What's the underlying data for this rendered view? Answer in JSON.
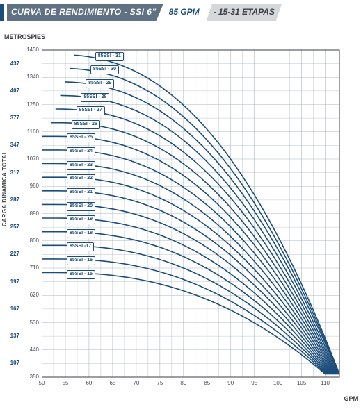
{
  "header": {
    "title": "CURVA DE RENDIMIENTO - SSI 6\"",
    "sub1": "85 GPM",
    "sub2": "- 15-31 ETAPAS"
  },
  "axes": {
    "metros_label": "METROS",
    "pies_label": "PIES",
    "y_title_vertical": "CARGA DINÁMICA TOTAL",
    "x_unit": "GPM",
    "xlim": [
      50,
      113
    ],
    "ylim_pies": [
      350,
      1430
    ],
    "x_ticks": [
      50,
      55,
      60,
      65,
      70,
      75,
      80,
      85,
      90,
      95,
      100,
      105,
      110
    ],
    "y_ticks_pies": [
      350,
      440,
      530,
      620,
      710,
      800,
      890,
      980,
      1070,
      1160,
      1250,
      1340,
      1430
    ],
    "y_ticks_metros": [
      107,
      137,
      167,
      197,
      227,
      257,
      287,
      317,
      347,
      377,
      407,
      437
    ],
    "grid_color": "#a9b8c6",
    "plot_bg": "#ffffff",
    "axis_color": "#3a3f46",
    "tick_fontsize": 8
  },
  "style": {
    "curve_color": "#1c4d7a",
    "curve_width": 1.6,
    "pill_border": "#1c4d7a",
    "pill_text": "#1c4d7a",
    "pill_bg": "#ffffff",
    "pill_fontsize": 7
  },
  "curves": [
    {
      "name": "85SSI - 15",
      "label": "85SSI - 15",
      "start_pies": 695,
      "label_x": 55,
      "end_x": 110.0
    },
    {
      "name": "85SSI - 16",
      "label": "85SSI - 16",
      "start_pies": 740,
      "label_x": 55,
      "end_x": 110.2
    },
    {
      "name": "85SSI - 17",
      "label": "85SSI -17",
      "start_pies": 785,
      "label_x": 55,
      "end_x": 110.4
    },
    {
      "name": "85SSI - 18",
      "label": "85SSI - 18",
      "start_pies": 830,
      "label_x": 55,
      "end_x": 110.6
    },
    {
      "name": "85SSI - 19",
      "label": "85SSI - 19",
      "start_pies": 875,
      "label_x": 55,
      "end_x": 110.8
    },
    {
      "name": "85SSI - 20",
      "label": "85SSI - 20",
      "start_pies": 920,
      "label_x": 55,
      "end_x": 111.0
    },
    {
      "name": "85SSI - 21",
      "label": "85SSI - 21",
      "start_pies": 965,
      "label_x": 55,
      "end_x": 111.2
    },
    {
      "name": "85SSI - 22",
      "label": "85SSI - 22",
      "start_pies": 1010,
      "label_x": 55,
      "end_x": 111.4
    },
    {
      "name": "85SSI - 23",
      "label": "85SSI - 23",
      "start_pies": 1055,
      "label_x": 55,
      "end_x": 111.6
    },
    {
      "name": "85SSI - 24",
      "label": "85SSI - 24",
      "start_pies": 1100,
      "label_x": 55,
      "end_x": 111.8
    },
    {
      "name": "85SSI - 25",
      "label": "85SSI - 25",
      "start_pies": 1145,
      "label_x": 55,
      "end_x": 112.0
    },
    {
      "name": "85SSI - 26",
      "label": "85SSI - 26",
      "start_pies": 1190,
      "label_x": 56,
      "end_x": 112.2
    },
    {
      "name": "85SSI - 27",
      "label": "85SSI - 27",
      "start_pies": 1235,
      "label_x": 57,
      "end_x": 112.4
    },
    {
      "name": "85SSI - 28",
      "label": "85SSI - 28",
      "start_pies": 1280,
      "label_x": 58,
      "end_x": 112.6
    },
    {
      "name": "85SSI - 29",
      "label": "85SSI - 29",
      "start_pies": 1325,
      "label_x": 59,
      "end_x": 112.8
    },
    {
      "name": "85SSI - 30",
      "label": "85SSI - 30",
      "start_pies": 1370,
      "label_x": 60,
      "end_x": 112.9
    },
    {
      "name": "85SSI - 31",
      "label": "85SSI - 31",
      "start_pies": 1415,
      "label_x": 61,
      "end_x": 113.0
    }
  ]
}
